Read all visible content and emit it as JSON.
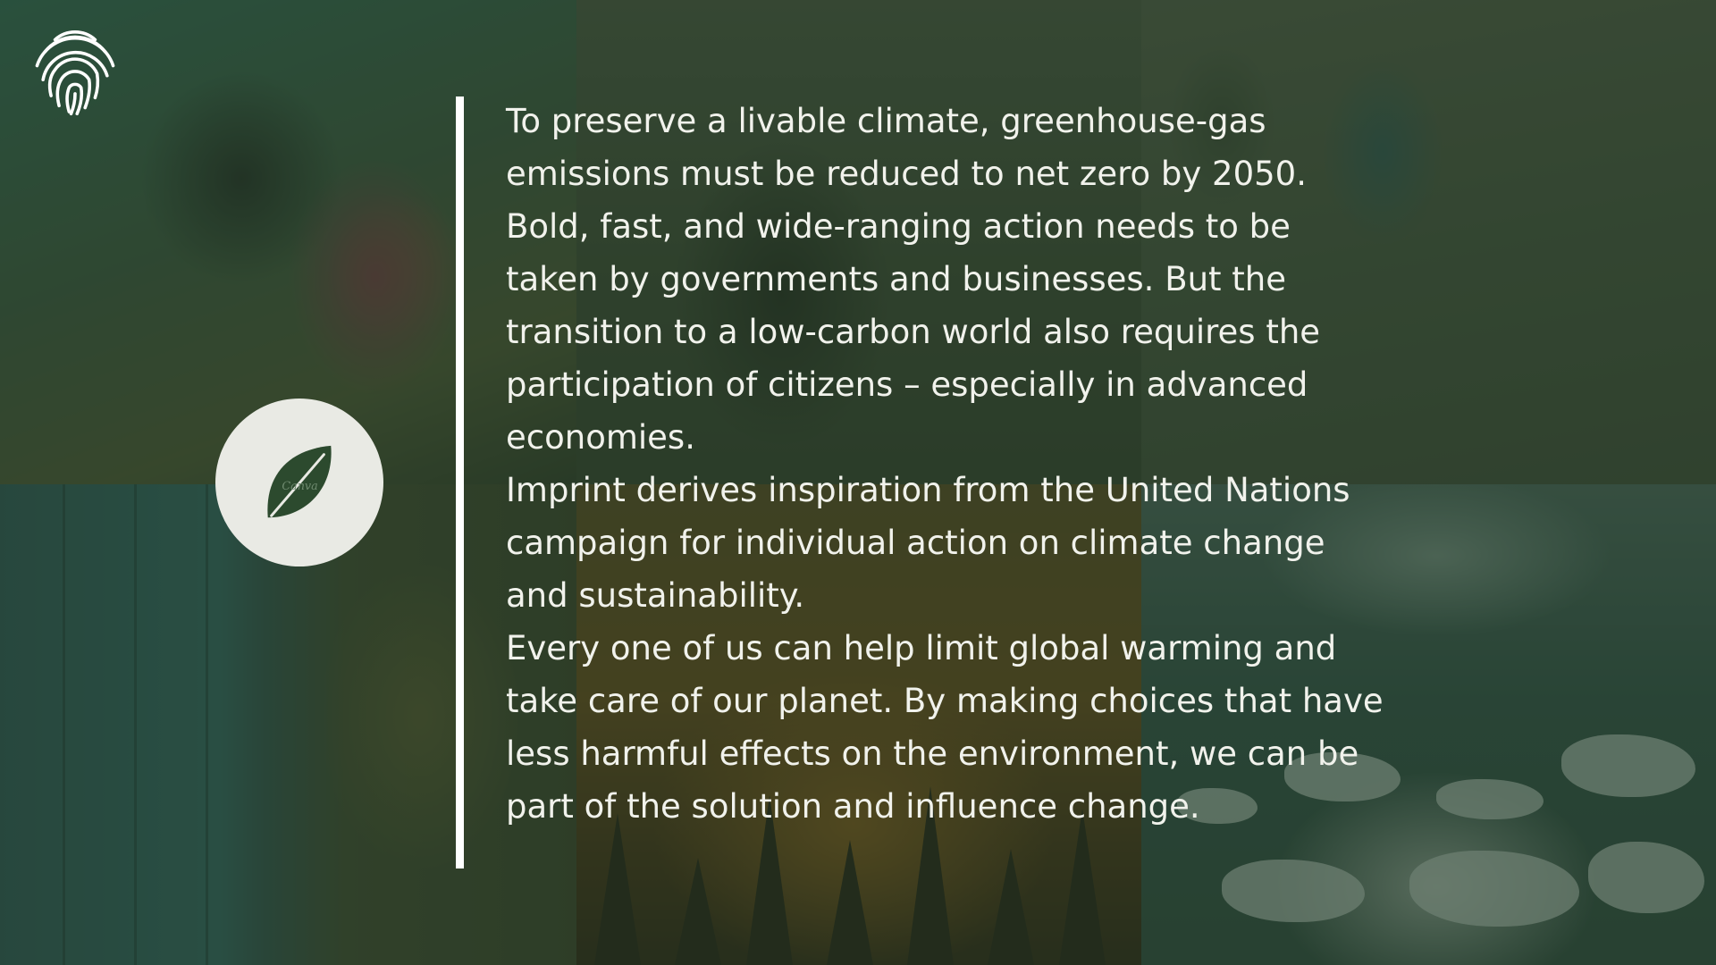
{
  "slide": {
    "paragraphs": [
      "To preserve a livable climate, greenhouse-gas\nemissions must be reduced to net zero by 2050.\nBold, fast, and wide-ranging action needs to be\ntaken by governments and businesses. But the\ntransition to a low-carbon world also requires the\nparticipation of citizens – especially in advanced\neconomies.",
      "Imprint derives inspiration from the United Nations\ncampaign for individual action on climate change\nand sustainability.",
      "Every one of us can help limit global warming and\ntake care of our planet. By making choices that have\nless harmful effects on the environment, we can be\npart of the solution and influence change."
    ],
    "badge_watermark": "Canva"
  },
  "icons": {
    "logo": "fingerprint-icon",
    "badge": "leaf-icon"
  },
  "colors": {
    "overlay": "#263a28",
    "text": "#f1f2ec",
    "divider": "#ffffff",
    "badge_bg": "#e9eae4",
    "leaf": "#2c4a2e"
  }
}
